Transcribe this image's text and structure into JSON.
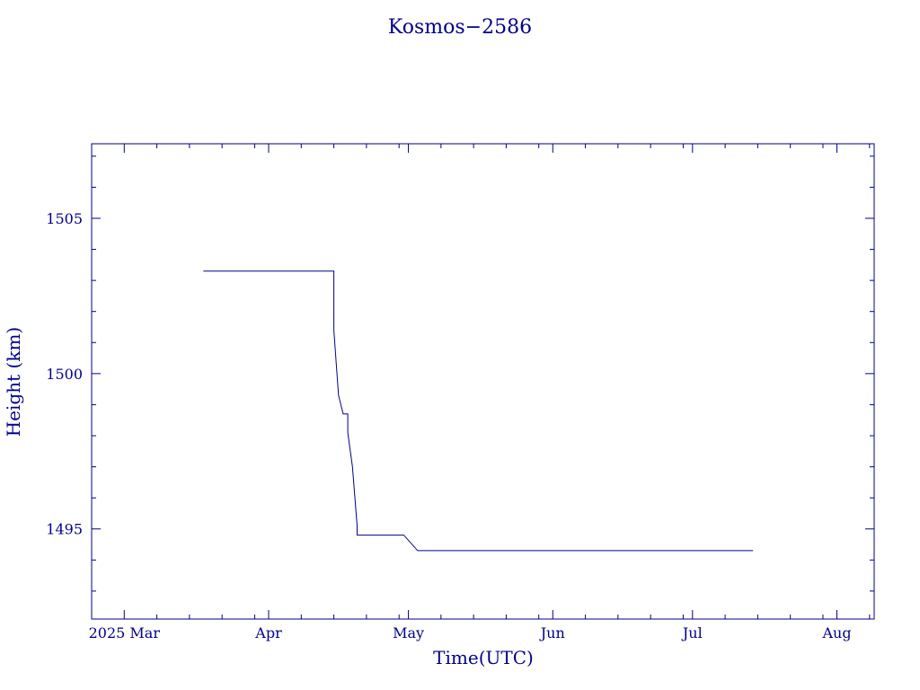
{
  "chart_data": {
    "type": "line",
    "title": "Kosmos−2586",
    "xlabel": "Time(UTC)",
    "ylabel": "Height (km)",
    "x_ticks": [
      "2025 Mar",
      "Apr",
      "May",
      "Jun",
      "Jul",
      "Aug"
    ],
    "x_range": [
      "2025-02-22",
      "2025-08-09"
    ],
    "y_ticks": [
      1495,
      1500,
      1505
    ],
    "ylim": [
      1492.1,
      1507.4
    ],
    "grid": false,
    "color": "#00008b",
    "series": [
      {
        "x": [
          "2025-03-18",
          "2025-04-15",
          "2025-04-15",
          "2025-04-16",
          "2025-04-17",
          "2025-04-17",
          "2025-04-18",
          "2025-04-18",
          "2025-04-19",
          "2025-04-20",
          "2025-04-20",
          "2025-04-21",
          "2025-04-30",
          "2025-05-03",
          "2025-07-14"
        ],
        "y": [
          1503.3,
          1503.3,
          1501.4,
          1499.3,
          1498.7,
          1498.7,
          1498.7,
          1498.1,
          1497.0,
          1495.1,
          1494.8,
          1494.8,
          1494.8,
          1494.3,
          1494.3
        ]
      }
    ]
  }
}
